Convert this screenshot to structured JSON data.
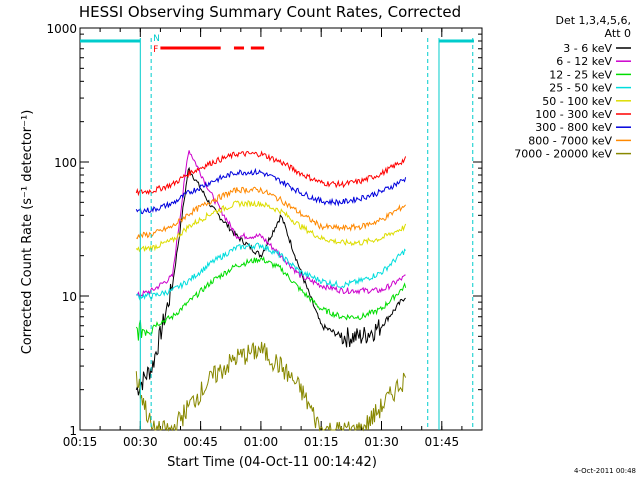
{
  "chart_data": {
    "type": "line",
    "title": "HESSI Observing Summary Count Rates, Corrected",
    "xlabel": "Start Time (04-Oct-11 00:14:42)",
    "ylabel": "Corrected Count Rate (s⁻¹ detector⁻¹)",
    "yscale": "log",
    "ylim": [
      1,
      1000
    ],
    "xlim": [
      "00:15",
      "01:55"
    ],
    "x_ticks": [
      "00:15",
      "00:30",
      "00:45",
      "01:00",
      "01:15",
      "01:30",
      "01:45"
    ],
    "y_ticks": [
      "1",
      "10",
      "100",
      "1000"
    ],
    "x": [
      "00:29",
      "00:33",
      "00:38",
      "00:42",
      "00:48",
      "00:54",
      "01:00",
      "01:05",
      "01:10",
      "01:15",
      "01:20",
      "01:25",
      "01:30",
      "01:36"
    ],
    "series": [
      {
        "name": "3 - 6 keV",
        "color": "#000000",
        "values": [
          2,
          3,
          12,
          90,
          45,
          28,
          20,
          40,
          15,
          6,
          5,
          5,
          6,
          10
        ]
      },
      {
        "name": "6 - 12 keV",
        "color": "#cc00cc",
        "values": [
          10,
          11,
          14,
          125,
          55,
          28,
          28,
          20,
          14,
          12,
          11,
          11,
          11,
          14
        ]
      },
      {
        "name": "12 - 25 keV",
        "color": "#00dd00",
        "values": [
          5.5,
          6,
          7,
          9,
          13,
          17,
          19,
          16,
          11,
          8,
          7,
          7,
          8,
          12
        ]
      },
      {
        "name": "25 - 50 keV",
        "color": "#00dddd",
        "values": [
          10,
          10,
          11,
          13,
          18,
          23,
          24,
          20,
          15,
          13,
          12,
          13,
          15,
          22
        ]
      },
      {
        "name": "50 - 100 keV",
        "color": "#dddd00",
        "values": [
          22,
          23,
          26,
          33,
          42,
          49,
          49,
          43,
          33,
          27,
          25,
          25,
          27,
          33
        ]
      },
      {
        "name": "100 - 300 keV",
        "color": "#ff0000",
        "values": [
          59,
          61,
          68,
          82,
          100,
          115,
          115,
          100,
          82,
          70,
          68,
          72,
          82,
          105
        ]
      },
      {
        "name": "300 - 800 keV",
        "color": "#0000dd",
        "values": [
          43,
          44,
          49,
          59,
          72,
          84,
          84,
          72,
          59,
          51,
          50,
          54,
          60,
          75
        ]
      },
      {
        "name": "800 - 7000 keV",
        "color": "#ff8800",
        "values": [
          28,
          29,
          33,
          41,
          52,
          62,
          62,
          52,
          41,
          33,
          32,
          33,
          37,
          48
        ]
      },
      {
        "name": "7000 - 20000 keV",
        "color": "#888800",
        "values": [
          2.5,
          1,
          1,
          1.5,
          2.5,
          3.5,
          4,
          3,
          2,
          1,
          1,
          1,
          1.5,
          2.5
        ]
      }
    ],
    "legend_header": [
      "Det 1,3,4,5,6,",
      "Att 0"
    ],
    "legend_placement": "right",
    "flags": [
      {
        "label": "N",
        "color": "#00cccc"
      },
      {
        "label": "F",
        "color": "#ff0000"
      }
    ],
    "timestamp": "4-Oct-2011 00:48",
    "grid": false
  }
}
